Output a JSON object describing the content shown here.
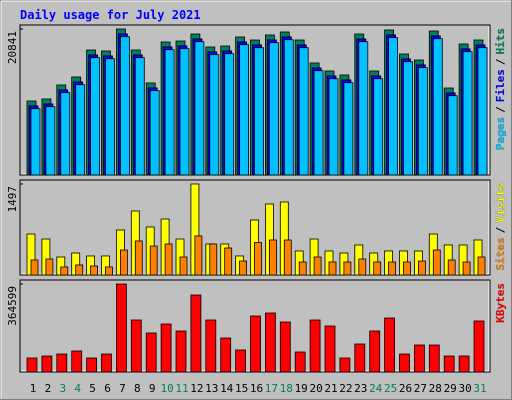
{
  "chart_data": [
    {
      "type": "bar",
      "title": "Daily usage for July 2021",
      "ylim": [
        0,
        20841
      ],
      "yticks": [
        20841
      ],
      "legend_separator": "/",
      "series": [
        {
          "name": "Pages",
          "color": "#00c0ff",
          "values": [
            9464,
            9749,
            11748,
            12890,
            16744,
            16601,
            19741,
            16744,
            12033,
            17886,
            18029,
            19028,
            17172,
            17315,
            18600,
            18171,
            18885,
            19313,
            18171,
            14888,
            13746,
            13175,
            19028,
            13746,
            19599,
            16173,
            15316,
            19456,
            11319,
            17600,
            18171
          ]
        },
        {
          "name": "Files",
          "color": "#0000ff",
          "values": [
            9864,
            10149,
            12148,
            13290,
            17144,
            17001,
            20141,
            17144,
            12433,
            18286,
            18429,
            19428,
            17572,
            17715,
            19000,
            18571,
            19285,
            19713,
            18571,
            15288,
            14146,
            13575,
            19428,
            14146,
            19999,
            16573,
            15716,
            19856,
            11719,
            18000,
            18571
          ]
        },
        {
          "name": "Hits",
          "color": "#00805c",
          "values": [
            10564,
            10849,
            12848,
            13990,
            17844,
            17701,
            20841,
            17844,
            13133,
            18986,
            19129,
            20128,
            18272,
            18415,
            19700,
            19271,
            19985,
            20413,
            19271,
            15988,
            14846,
            14275,
            20128,
            14846,
            20699,
            17273,
            16416,
            20556,
            12419,
            18700,
            19271
          ]
        }
      ]
    },
    {
      "type": "bar",
      "ylim": [
        0,
        1497
      ],
      "yticks": [
        1497
      ],
      "legend_separator": "/",
      "series": [
        {
          "name": "Sites",
          "color": "#ff8000",
          "values": [
            247,
            263,
            132,
            165,
            148,
            132,
            411,
            560,
            477,
            510,
            296,
            642,
            510,
            444,
            230,
            535,
            576,
            576,
            214,
            296,
            214,
            214,
            263,
            214,
            214,
            214,
            230,
            411,
            247,
            214,
            296
          ]
        },
        {
          "name": "Visits",
          "color": "#ffff00",
          "values": [
            674,
            592,
            296,
            362,
            313,
            313,
            740,
            1053,
            790,
            921,
            592,
            1497,
            510,
            510,
            313,
            905,
            1168,
            1201,
            395,
            592,
            395,
            362,
            494,
            362,
            395,
            395,
            395,
            674,
            494,
            494,
            576
          ]
        }
      ]
    },
    {
      "type": "bar",
      "ylim": [
        0,
        364599
      ],
      "yticks": [
        364599
      ],
      "series": [
        {
          "name": "KBytes",
          "color": "#ff0000",
          "values": [
            58002,
            66288,
            74574,
            87003,
            58002,
            74574,
            364599,
            215436,
            161577,
            198864,
            169863,
            319011,
            215436,
            140862,
            91146,
            232008,
            244437,
            207150,
            82860,
            215436,
            190578,
            58002,
            116004,
            169863,
            223722,
            74574,
            111861,
            111861,
            66288,
            66288,
            211293
          ]
        }
      ],
      "categories": [
        "1",
        "2",
        "3",
        "4",
        "5",
        "6",
        "7",
        "8",
        "9",
        "10",
        "11",
        "12",
        "13",
        "14",
        "15",
        "16",
        "17",
        "18",
        "19",
        "20",
        "21",
        "22",
        "23",
        "24",
        "25",
        "26",
        "27",
        "28",
        "29",
        "30",
        "31"
      ],
      "category_colors": [
        "#000000",
        "#000000",
        "#00805c",
        "#00805c",
        "#000000",
        "#000000",
        "#000000",
        "#000000",
        "#000000",
        "#00805c",
        "#00805c",
        "#000000",
        "#000000",
        "#000000",
        "#000000",
        "#000000",
        "#00805c",
        "#00805c",
        "#000000",
        "#000000",
        "#000000",
        "#000000",
        "#000000",
        "#00805c",
        "#00805c",
        "#000000",
        "#000000",
        "#000000",
        "#000000",
        "#000000",
        "#00805c"
      ]
    }
  ]
}
